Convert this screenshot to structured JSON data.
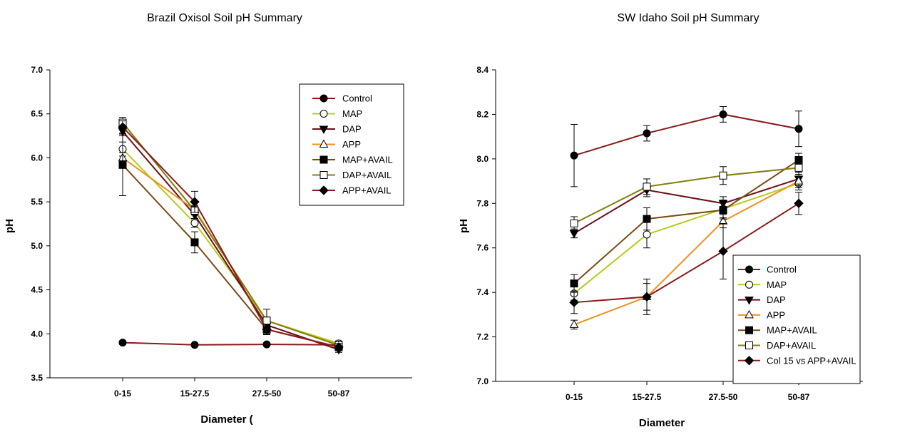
{
  "chart_data": [
    {
      "type": "line",
      "title": "Brazil Oxisol Soil pH Summary",
      "xlabel": "Diameter (",
      "ylabel": "pH",
      "categories": [
        "0-15",
        "15-27.5",
        "27.5-50",
        "50-87"
      ],
      "ylim": [
        3.5,
        7.0
      ],
      "yticks": [
        "3.5",
        "4.0",
        "4.5",
        "5.0",
        "5.5",
        "6.0",
        "6.5",
        "7.0"
      ],
      "grid": false,
      "legend_position": "top-right",
      "series": [
        {
          "name": "Control",
          "values": [
            3.9,
            3.875,
            3.88,
            3.875
          ],
          "errors": [
            0.02,
            0.01,
            0.01,
            0.02
          ],
          "color": "#8B1A1A",
          "marker": "circle",
          "filled": true
        },
        {
          "name": "MAP",
          "values": [
            6.1,
            5.26,
            4.15,
            3.89
          ],
          "errors": [
            0.08,
            0.05,
            0.04,
            0.03
          ],
          "color": "#B5CC18",
          "marker": "circle",
          "filled": false
        },
        {
          "name": "DAP",
          "values": [
            6.3,
            5.35,
            4.1,
            3.82
          ],
          "errors": [
            0.05,
            0.04,
            0.03,
            0.03
          ],
          "color": "#6B0F1A",
          "marker": "triangle-down",
          "filled": true
        },
        {
          "name": "APP",
          "values": [
            6.0,
            5.41,
            4.15,
            3.87
          ],
          "errors": [
            0.06,
            0.05,
            0.04,
            0.03
          ],
          "color": "#F0901E",
          "marker": "triangle-up",
          "filled": false
        },
        {
          "name": "MAP+AVAIL",
          "values": [
            5.92,
            5.04,
            4.05,
            3.85
          ],
          "errors": [
            0.35,
            0.12,
            0.05,
            0.04
          ],
          "color": "#7A4A12",
          "marker": "square",
          "filled": true
        },
        {
          "name": "DAP+AVAIL",
          "values": [
            6.4,
            5.4,
            4.15,
            3.87
          ],
          "errors": [
            0.06,
            0.05,
            0.13,
            0.03
          ],
          "color": "#7F7F0F",
          "marker": "square",
          "filled": false
        },
        {
          "name": "APP+AVAIL",
          "values": [
            6.35,
            5.5,
            4.05,
            3.85
          ],
          "errors": [
            0.07,
            0.12,
            0.06,
            0.04
          ],
          "color": "#8B1A1A",
          "marker": "diamond",
          "filled": true
        }
      ]
    },
    {
      "type": "line",
      "title": "SW Idaho Soil pH Summary",
      "xlabel": "Diameter",
      "ylabel": "pH",
      "categories": [
        "0-15",
        "15-27.5",
        "27.5-50",
        "50-87"
      ],
      "ylim": [
        7.0,
        8.4
      ],
      "yticks": [
        "7.0",
        "7.2",
        "7.4",
        "7.6",
        "7.8",
        "8.0",
        "8.2",
        "8.4"
      ],
      "grid": false,
      "legend_position": "bottom-right",
      "series": [
        {
          "name": "Control",
          "values": [
            8.015,
            8.115,
            8.2,
            8.135
          ],
          "errors": [
            0.14,
            0.035,
            0.035,
            0.08
          ],
          "color": "#8B1A1A",
          "marker": "circle",
          "filled": true
        },
        {
          "name": "MAP",
          "values": [
            7.395,
            7.66,
            7.775,
            7.89
          ],
          "errors": [
            0.03,
            0.06,
            0.04,
            0.03
          ],
          "color": "#B5CC18",
          "marker": "circle",
          "filled": false
        },
        {
          "name": "DAP",
          "values": [
            7.665,
            7.86,
            7.8,
            7.91
          ],
          "errors": [
            0.02,
            0.03,
            0.03,
            0.03
          ],
          "color": "#6B0F1A",
          "marker": "triangle-down",
          "filled": true
        },
        {
          "name": "APP",
          "values": [
            7.255,
            7.38,
            7.72,
            7.9
          ],
          "errors": [
            0.02,
            0.06,
            0.03,
            0.03
          ],
          "color": "#F0901E",
          "marker": "triangle-up",
          "filled": false
        },
        {
          "name": "MAP+AVAIL",
          "values": [
            7.44,
            7.73,
            7.77,
            7.995
          ],
          "errors": [
            0.04,
            0.05,
            0.04,
            0.03
          ],
          "color": "#7A4A12",
          "marker": "square",
          "filled": true
        },
        {
          "name": "DAP+AVAIL",
          "values": [
            7.71,
            7.875,
            7.925,
            7.96
          ],
          "errors": [
            0.03,
            0.035,
            0.04,
            0.03
          ],
          "color": "#7F7F0F",
          "marker": "square",
          "filled": false
        },
        {
          "name": "Col 15 vs APP+AVAIL",
          "values": [
            7.355,
            7.38,
            7.585,
            7.8
          ],
          "errors": [
            0.05,
            0.08,
            0.125,
            0.05
          ],
          "color": "#8B1A1A",
          "marker": "diamond",
          "filled": true
        }
      ]
    }
  ]
}
